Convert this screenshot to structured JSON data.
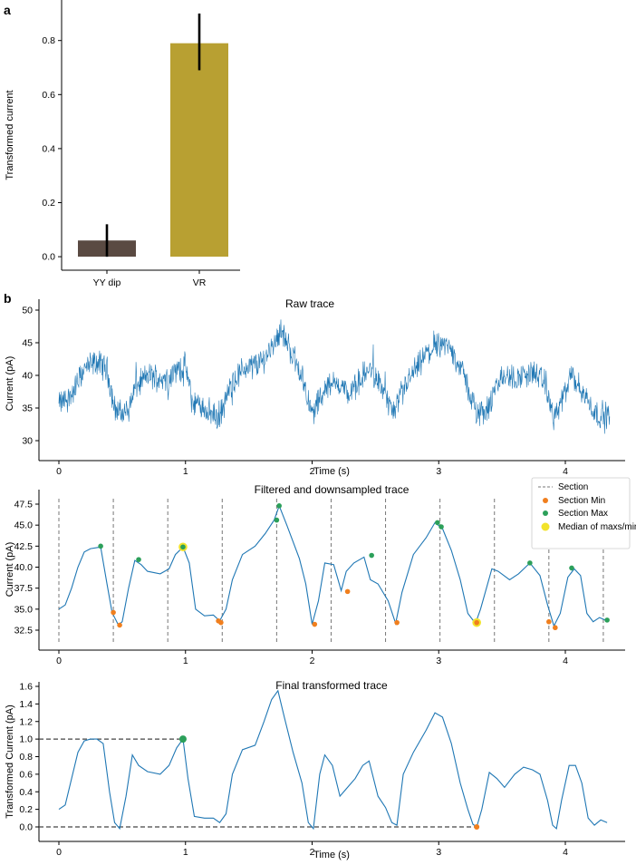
{
  "panel_labels": {
    "a": "a",
    "b": "b"
  },
  "colors": {
    "bar_yy": "#5a4a42",
    "bar_vr": "#b8a032",
    "trace": "#1f77b4",
    "section": "#777777",
    "min": "#f07f1e",
    "max": "#2ca05a",
    "median": "#f2e32b"
  },
  "chart_data": [
    {
      "type": "bar",
      "categories": [
        "YY dip",
        "VR"
      ],
      "values": [
        0.06,
        0.79
      ],
      "errors": [
        [
          0.0,
          0.12
        ],
        [
          0.69,
          0.9
        ]
      ],
      "ylabel": "Transformed current",
      "ylim": [
        -0.05,
        0.95
      ],
      "yticks": [
        "0.0",
        "0.2",
        "0.4",
        "0.6",
        "0.8"
      ],
      "grid": false
    },
    {
      "type": "line",
      "title": "Raw trace",
      "xlabel": "Time (s)",
      "ylabel": "Current (pA)",
      "xlim": [
        -0.15,
        4.5
      ],
      "ylim": [
        28,
        50.5
      ],
      "xticks": [
        "0",
        "1",
        "2",
        "3",
        "4"
      ],
      "yticks": [
        "30",
        "35",
        "40",
        "45",
        "50"
      ],
      "envelope": [
        [
          0.0,
          35.5
        ],
        [
          0.1,
          37
        ],
        [
          0.15,
          39
        ],
        [
          0.2,
          41
        ],
        [
          0.3,
          42
        ],
        [
          0.38,
          41
        ],
        [
          0.44,
          35
        ],
        [
          0.5,
          34
        ],
        [
          0.55,
          35
        ],
        [
          0.6,
          38
        ],
        [
          0.7,
          40
        ],
        [
          0.85,
          39.5
        ],
        [
          0.95,
          41
        ],
        [
          1.0,
          41.5
        ],
        [
          1.05,
          36
        ],
        [
          1.15,
          35
        ],
        [
          1.25,
          33.5
        ],
        [
          1.3,
          35
        ],
        [
          1.35,
          38
        ],
        [
          1.45,
          41
        ],
        [
          1.6,
          42
        ],
        [
          1.7,
          45
        ],
        [
          1.75,
          47
        ],
        [
          1.85,
          43
        ],
        [
          1.92,
          40
        ],
        [
          2.0,
          34
        ],
        [
          2.1,
          38
        ],
        [
          2.2,
          39
        ],
        [
          2.3,
          37
        ],
        [
          2.4,
          40
        ],
        [
          2.47,
          41
        ],
        [
          2.55,
          38
        ],
        [
          2.65,
          34
        ],
        [
          2.75,
          39
        ],
        [
          2.9,
          43
        ],
        [
          3.0,
          45
        ],
        [
          3.1,
          44
        ],
        [
          3.2,
          40
        ],
        [
          3.3,
          34
        ],
        [
          3.4,
          35
        ],
        [
          3.45,
          38
        ],
        [
          3.5,
          40
        ],
        [
          3.6,
          39.5
        ],
        [
          3.75,
          40.5
        ],
        [
          3.85,
          38.5
        ],
        [
          3.9,
          33.5
        ],
        [
          3.95,
          35
        ],
        [
          4.05,
          40
        ],
        [
          4.15,
          37
        ],
        [
          4.25,
          34
        ],
        [
          4.35,
          34
        ]
      ]
    },
    {
      "type": "line",
      "title": "Filtered and downsampled trace",
      "ylabel": "Current (pA)",
      "xlim": [
        -0.15,
        4.5
      ],
      "ylim": [
        31,
        48.5
      ],
      "xticks": [
        "0",
        "1",
        "2",
        "3",
        "4"
      ],
      "yticks": [
        "32.5",
        "35.0",
        "37.5",
        "40.0",
        "42.5",
        "45.0",
        "47.5"
      ],
      "x": [
        0.0,
        0.05,
        0.1,
        0.15,
        0.2,
        0.25,
        0.33,
        0.38,
        0.42,
        0.47,
        0.5,
        0.55,
        0.6,
        0.65,
        0.7,
        0.8,
        0.87,
        0.92,
        0.98,
        1.03,
        1.08,
        1.15,
        1.22,
        1.27,
        1.32,
        1.37,
        1.45,
        1.55,
        1.63,
        1.7,
        1.74,
        1.8,
        1.9,
        1.95,
        2.0,
        2.05,
        2.1,
        2.17,
        2.23,
        2.27,
        2.33,
        2.41,
        2.46,
        2.52,
        2.6,
        2.66,
        2.71,
        2.8,
        2.9,
        2.97,
        3.03,
        3.1,
        3.17,
        3.23,
        3.29,
        3.33,
        3.42,
        3.47,
        3.56,
        3.63,
        3.72,
        3.8,
        3.86,
        3.91,
        3.96,
        4.02,
        4.07,
        4.12,
        4.17,
        4.22,
        4.27,
        4.33
      ],
      "y": [
        35.0,
        35.5,
        37.5,
        40.0,
        41.8,
        42.2,
        42.4,
        38.0,
        34.6,
        33.1,
        33.5,
        37.5,
        40.8,
        40.3,
        39.5,
        39.2,
        39.8,
        41.5,
        42.4,
        40.5,
        35.0,
        34.2,
        34.3,
        33.6,
        35.0,
        38.5,
        41.5,
        42.5,
        44.0,
        45.6,
        47.3,
        45.0,
        41.0,
        38.0,
        33.2,
        36.0,
        40.5,
        40.3,
        37.2,
        39.5,
        40.5,
        41.2,
        38.5,
        38.0,
        36.0,
        33.3,
        37.0,
        41.5,
        43.5,
        45.3,
        44.6,
        42.0,
        38.5,
        34.5,
        33.3,
        35.0,
        39.8,
        39.5,
        38.5,
        39.2,
        40.5,
        39.0,
        35.5,
        33.0,
        34.5,
        38.8,
        39.8,
        39.0,
        34.5,
        33.5,
        34.0,
        33.6
      ],
      "sections": [
        0.0,
        0.43,
        0.86,
        1.29,
        1.72,
        2.15,
        2.58,
        3.01,
        3.44,
        3.87,
        4.3
      ],
      "mins": [
        [
          0.43,
          34.6
        ],
        [
          0.48,
          33.1
        ],
        [
          1.26,
          33.6
        ],
        [
          1.28,
          33.4
        ],
        [
          2.02,
          33.2
        ],
        [
          2.28,
          37.1
        ],
        [
          2.67,
          33.4
        ],
        [
          3.3,
          33.4
        ],
        [
          3.87,
          33.5
        ],
        [
          3.92,
          32.8
        ]
      ],
      "maxs": [
        [
          0.33,
          42.5
        ],
        [
          0.63,
          40.9
        ],
        [
          0.98,
          42.4
        ],
        [
          1.72,
          45.6
        ],
        [
          1.74,
          47.3
        ],
        [
          2.47,
          41.4
        ],
        [
          2.99,
          45.3
        ],
        [
          3.02,
          44.8
        ],
        [
          3.72,
          40.5
        ],
        [
          4.05,
          39.9
        ],
        [
          4.33,
          33.7
        ]
      ],
      "medians": [
        [
          0.98,
          42.4
        ],
        [
          3.3,
          33.4
        ]
      ],
      "legend": {
        "position": "top-right",
        "entries": [
          "Section",
          "Section Min",
          "Section Max",
          "Median of maxs/mins"
        ]
      }
    },
    {
      "type": "line",
      "title": "Final transformed trace",
      "xlabel": "Time (s)",
      "ylabel": "Transformed Current (pA)",
      "xlim": [
        -0.15,
        4.5
      ],
      "ylim": [
        -0.1,
        1.65
      ],
      "xticks": [
        "0",
        "1",
        "2",
        "3",
        "4"
      ],
      "yticks": [
        "0.0",
        "0.2",
        "0.4",
        "0.6",
        "0.8",
        "1.0",
        "1.2",
        "1.4",
        "1.6"
      ],
      "x": [
        0.0,
        0.05,
        0.1,
        0.15,
        0.2,
        0.25,
        0.3,
        0.35,
        0.4,
        0.44,
        0.48,
        0.53,
        0.58,
        0.63,
        0.7,
        0.8,
        0.87,
        0.93,
        0.98,
        1.02,
        1.07,
        1.15,
        1.22,
        1.27,
        1.32,
        1.37,
        1.45,
        1.55,
        1.62,
        1.68,
        1.73,
        1.78,
        1.85,
        1.92,
        1.97,
        2.01,
        2.06,
        2.1,
        2.16,
        2.22,
        2.28,
        2.34,
        2.4,
        2.45,
        2.52,
        2.58,
        2.63,
        2.67,
        2.72,
        2.8,
        2.9,
        2.97,
        3.03,
        3.1,
        3.17,
        3.23,
        3.27,
        3.3,
        3.34,
        3.4,
        3.46,
        3.52,
        3.6,
        3.67,
        3.74,
        3.8,
        3.86,
        3.9,
        3.93,
        3.97,
        4.03,
        4.08,
        4.13,
        4.18,
        4.23,
        4.28,
        4.33
      ],
      "y": [
        0.2,
        0.25,
        0.55,
        0.85,
        0.98,
        1.0,
        1.0,
        0.95,
        0.4,
        0.05,
        -0.02,
        0.35,
        0.82,
        0.7,
        0.63,
        0.6,
        0.7,
        0.9,
        1.0,
        0.55,
        0.12,
        0.1,
        0.1,
        0.05,
        0.15,
        0.6,
        0.88,
        0.93,
        1.2,
        1.45,
        1.55,
        1.25,
        0.85,
        0.5,
        0.05,
        -0.02,
        0.6,
        0.82,
        0.7,
        0.35,
        0.45,
        0.55,
        0.7,
        0.75,
        0.35,
        0.22,
        0.05,
        0.02,
        0.6,
        0.85,
        1.1,
        1.3,
        1.25,
        0.95,
        0.5,
        0.2,
        0.03,
        0.0,
        0.2,
        0.62,
        0.55,
        0.45,
        0.6,
        0.68,
        0.65,
        0.6,
        0.3,
        0.02,
        -0.02,
        0.3,
        0.7,
        0.7,
        0.5,
        0.1,
        0.02,
        0.08,
        0.05
      ],
      "reference_lines": [
        {
          "y": 1.0,
          "x_end": 0.98
        },
        {
          "y": 0.0,
          "x_end": 3.3
        }
      ],
      "points": [
        {
          "x": 0.98,
          "y": 1.0,
          "kind": "max"
        },
        {
          "x": 3.3,
          "y": 0.0,
          "kind": "min"
        }
      ]
    }
  ]
}
